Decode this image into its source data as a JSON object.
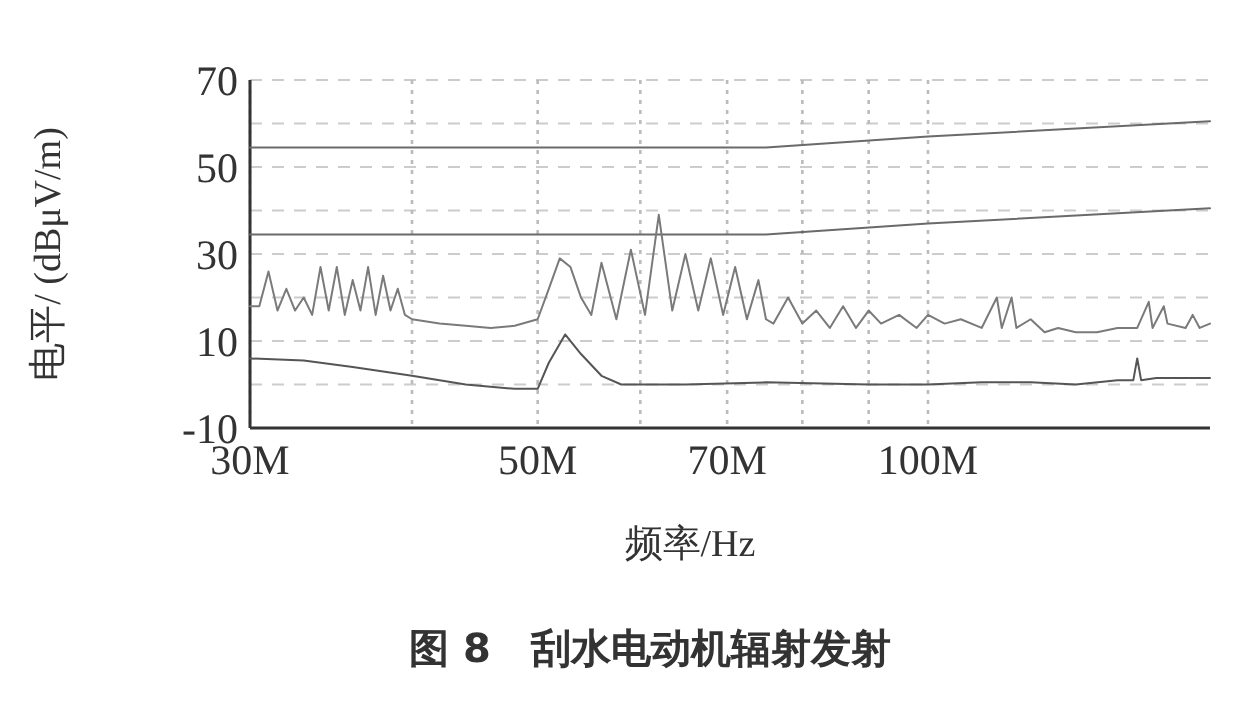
{
  "chart_data": {
    "type": "line",
    "title": "图 8　刮水电动机辐射发射",
    "xlabel": "频率/Hz",
    "ylabel": "电平/ (dBμV/m)",
    "log": "x",
    "grid": true,
    "marker": "none",
    "line_style": "solid",
    "xlim": [
      30,
      165
    ],
    "ylim": [
      -10,
      70
    ],
    "xticks": [
      {
        "value": 30,
        "label": "30M"
      },
      {
        "value": 40,
        "label": null
      },
      {
        "value": 50,
        "label": "50M"
      },
      {
        "value": 60,
        "label": null
      },
      {
        "value": 70,
        "label": "70M"
      },
      {
        "value": 80,
        "label": null
      },
      {
        "value": 90,
        "label": null
      },
      {
        "value": 100,
        "label": "100M"
      }
    ],
    "yticks": [
      -10,
      {
        "value": 0,
        "label": null
      },
      10,
      {
        "value": 20,
        "label": null
      },
      30,
      {
        "value": 40,
        "label": null
      },
      50,
      {
        "value": 60,
        "label": null
      },
      70
    ],
    "series": [
      {
        "color": "#6a6a6a",
        "x": [
          30,
          75,
          100,
          165
        ],
        "values": [
          54.5,
          54.5,
          57,
          60.5
        ]
      },
      {
        "color": "#6a6a6a",
        "x": [
          30,
          75,
          100,
          165
        ],
        "values": [
          34.5,
          34.5,
          37,
          40.5
        ]
      },
      {
        "color": "#7a7a7a",
        "x": [
          30,
          30.5,
          31,
          31.5,
          32,
          32.5,
          33,
          33.5,
          34,
          34.5,
          35,
          35.5,
          36,
          36.5,
          37,
          37.5,
          38,
          38.5,
          39,
          39.5,
          40,
          42,
          44,
          46,
          48,
          50,
          51,
          52,
          53,
          54,
          55,
          56,
          57.5,
          59,
          60.5,
          62,
          63.5,
          65,
          66.5,
          68,
          69.5,
          71,
          72.5,
          74,
          75,
          76,
          78,
          80,
          82,
          84,
          86,
          88,
          90,
          92,
          95,
          98,
          100,
          103,
          106,
          110,
          113,
          114,
          116,
          117,
          120,
          123,
          126,
          130,
          135,
          140,
          145,
          148,
          149,
          152,
          153,
          158,
          160,
          162,
          165
        ],
        "values": [
          18,
          18,
          26,
          17,
          22,
          17,
          20,
          16,
          27,
          17,
          27,
          16,
          24,
          17,
          27,
          16,
          25,
          17,
          22,
          16,
          15,
          14,
          13.5,
          13,
          13.5,
          15,
          22,
          29,
          27,
          20,
          16,
          28,
          15,
          31,
          16,
          39,
          17,
          30,
          17,
          29,
          16,
          27,
          15,
          24,
          15,
          14,
          20,
          14,
          17,
          13,
          18,
          13,
          17,
          14,
          16,
          13,
          16,
          14,
          15,
          13,
          20,
          13,
          20,
          13,
          15,
          12,
          13,
          12,
          12,
          13,
          13,
          19,
          13,
          18,
          14,
          13,
          16,
          13,
          14
        ]
      },
      {
        "color": "#555555",
        "x": [
          30,
          33,
          36,
          40,
          44,
          48,
          50,
          51,
          52.5,
          54,
          56,
          58,
          65,
          75,
          90,
          100,
          110,
          120,
          130,
          140,
          144,
          145,
          146,
          150,
          155,
          165
        ],
        "values": [
          6,
          5.5,
          4,
          2,
          0,
          -1,
          -1,
          5,
          11.5,
          7,
          2,
          0,
          0,
          0.5,
          0,
          0,
          0.5,
          0.5,
          0,
          1,
          1,
          6,
          1,
          1.5,
          1.5,
          1.5
        ]
      }
    ]
  }
}
